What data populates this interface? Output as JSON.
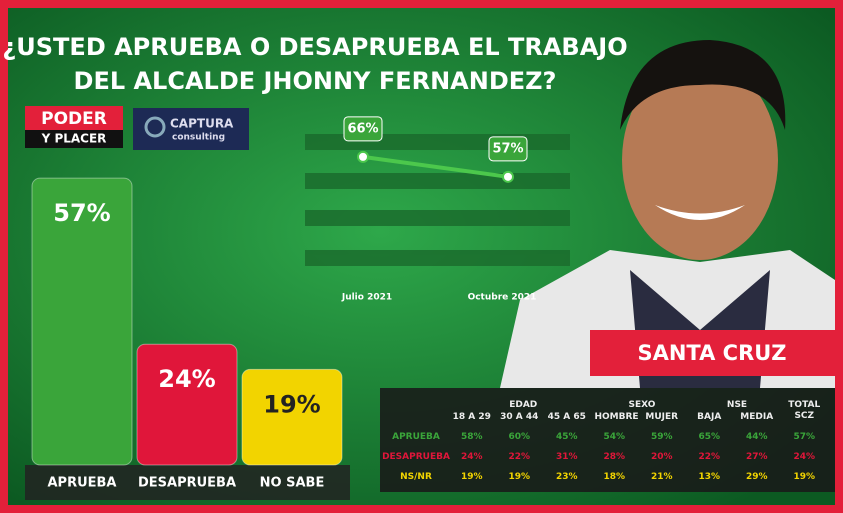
{
  "header": {
    "title_line1": "¿USTED APRUEBA O DESAPRUEBA EL TRABAJO",
    "title_line2": "DEL ALCALDE JHONNY FERNANDEZ?"
  },
  "logos": {
    "poder": "PODER",
    "placer": "Y PLACER",
    "captura": "CAPTURA",
    "consulting": "consulting"
  },
  "location": "SANTA CRUZ",
  "chart_data": [
    {
      "type": "bar",
      "categories": [
        "APRUEBA",
        "DESAPRUEBA",
        "NO SABE"
      ],
      "values": [
        57,
        24,
        19
      ],
      "value_labels": [
        "57%",
        "24%",
        "19%"
      ],
      "colors": [
        "#3aa53a",
        "#e0163a",
        "#f2d400"
      ],
      "ylim": [
        0,
        60
      ]
    },
    {
      "type": "line",
      "categories": [
        "Julio 2021",
        "Octubre 2021"
      ],
      "values": [
        66,
        57
      ],
      "value_labels": [
        "66%",
        "57%"
      ],
      "color": "#4cc84c",
      "ylim": [
        10,
        70
      ]
    }
  ],
  "table": {
    "groups": [
      "EDAD",
      "SEXO",
      "NSE"
    ],
    "columns": [
      "18 A 29",
      "30 A 44",
      "45 A 65",
      "HOMBRE",
      "MUJER",
      "BAJA",
      "MEDIA",
      "TOTAL SCZ"
    ],
    "rows": [
      {
        "label": "APRUEBA",
        "cells": [
          "58%",
          "60%",
          "45%",
          "54%",
          "59%",
          "65%",
          "44%",
          "57%"
        ]
      },
      {
        "label": "DESAPRUEBA",
        "cells": [
          "24%",
          "22%",
          "31%",
          "28%",
          "20%",
          "22%",
          "27%",
          "24%"
        ]
      },
      {
        "label": "NS/NR",
        "cells": [
          "19%",
          "19%",
          "23%",
          "18%",
          "21%",
          "13%",
          "29%",
          "19%"
        ]
      }
    ]
  }
}
